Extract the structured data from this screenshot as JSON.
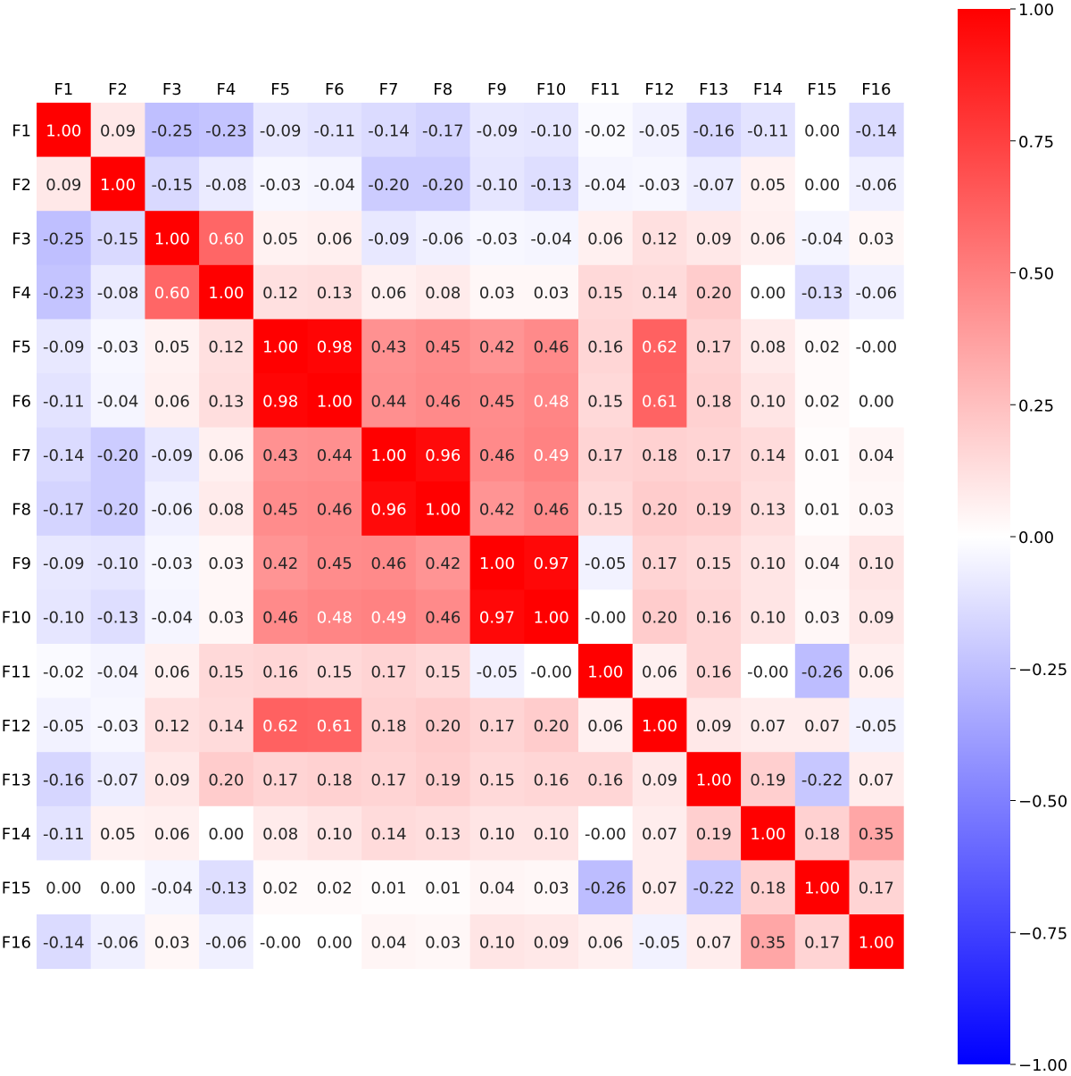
{
  "chart_data": {
    "type": "heatmap",
    "title": "",
    "xlabel": "",
    "ylabel": "",
    "colormap": "bwr",
    "vmin": -1.0,
    "vmax": 1.0,
    "colors": {
      "low": "#0000ff",
      "mid": "#ffffff",
      "high": "#ff0000"
    },
    "x_labels": [
      "F1",
      "F2",
      "F3",
      "F4",
      "F5",
      "F6",
      "F7",
      "F8",
      "F9",
      "F10",
      "F11",
      "F12",
      "F13",
      "F14",
      "F15",
      "F16"
    ],
    "y_labels": [
      "F1",
      "F2",
      "F3",
      "F4",
      "F5",
      "F6",
      "F7",
      "F8",
      "F9",
      "F10",
      "F11",
      "F12",
      "F13",
      "F14",
      "F15",
      "F16"
    ],
    "values": [
      [
        1.0,
        0.09,
        -0.25,
        -0.23,
        -0.09,
        -0.11,
        -0.14,
        -0.17,
        -0.09,
        -0.1,
        -0.02,
        -0.05,
        -0.16,
        -0.11,
        0.0,
        -0.14
      ],
      [
        0.09,
        1.0,
        -0.15,
        -0.08,
        -0.03,
        -0.04,
        -0.2,
        -0.2,
        -0.1,
        -0.13,
        -0.04,
        -0.03,
        -0.07,
        0.05,
        0.0,
        -0.06
      ],
      [
        -0.25,
        -0.15,
        1.0,
        0.6,
        0.05,
        0.06,
        -0.09,
        -0.06,
        -0.03,
        -0.04,
        0.06,
        0.12,
        0.09,
        0.06,
        -0.04,
        0.03
      ],
      [
        -0.23,
        -0.08,
        0.6,
        1.0,
        0.12,
        0.13,
        0.06,
        0.08,
        0.03,
        0.03,
        0.15,
        0.14,
        0.2,
        0.0,
        -0.13,
        -0.06
      ],
      [
        -0.09,
        -0.03,
        0.05,
        0.12,
        1.0,
        0.98,
        0.43,
        0.45,
        0.42,
        0.46,
        0.16,
        0.62,
        0.17,
        0.08,
        0.02,
        -0.0
      ],
      [
        -0.11,
        -0.04,
        0.06,
        0.13,
        0.98,
        1.0,
        0.44,
        0.46,
        0.45,
        0.48,
        0.15,
        0.61,
        0.18,
        0.1,
        0.02,
        0.0
      ],
      [
        -0.14,
        -0.2,
        -0.09,
        0.06,
        0.43,
        0.44,
        1.0,
        0.96,
        0.46,
        0.49,
        0.17,
        0.18,
        0.17,
        0.14,
        0.01,
        0.04
      ],
      [
        -0.17,
        -0.2,
        -0.06,
        0.08,
        0.45,
        0.46,
        0.96,
        1.0,
        0.42,
        0.46,
        0.15,
        0.2,
        0.19,
        0.13,
        0.01,
        0.03
      ],
      [
        -0.09,
        -0.1,
        -0.03,
        0.03,
        0.42,
        0.45,
        0.46,
        0.42,
        1.0,
        0.97,
        -0.05,
        0.17,
        0.15,
        0.1,
        0.04,
        0.1
      ],
      [
        -0.1,
        -0.13,
        -0.04,
        0.03,
        0.46,
        0.48,
        0.49,
        0.46,
        0.97,
        1.0,
        -0.0,
        0.2,
        0.16,
        0.1,
        0.03,
        0.09
      ],
      [
        -0.02,
        -0.04,
        0.06,
        0.15,
        0.16,
        0.15,
        0.17,
        0.15,
        -0.05,
        -0.0,
        1.0,
        0.06,
        0.16,
        -0.0,
        -0.26,
        0.06
      ],
      [
        -0.05,
        -0.03,
        0.12,
        0.14,
        0.62,
        0.61,
        0.18,
        0.2,
        0.17,
        0.2,
        0.06,
        1.0,
        0.09,
        0.07,
        0.07,
        -0.05
      ],
      [
        -0.16,
        -0.07,
        0.09,
        0.2,
        0.17,
        0.18,
        0.17,
        0.19,
        0.15,
        0.16,
        0.16,
        0.09,
        1.0,
        0.19,
        -0.22,
        0.07
      ],
      [
        -0.11,
        0.05,
        0.06,
        0.0,
        0.08,
        0.1,
        0.14,
        0.13,
        0.1,
        0.1,
        -0.0,
        0.07,
        0.19,
        1.0,
        0.18,
        0.35
      ],
      [
        0.0,
        0.0,
        -0.04,
        -0.13,
        0.02,
        0.02,
        0.01,
        0.01,
        0.04,
        0.03,
        -0.26,
        0.07,
        -0.22,
        0.18,
        1.0,
        0.17
      ],
      [
        -0.14,
        -0.06,
        0.03,
        -0.06,
        -0.0,
        0.0,
        0.04,
        0.03,
        0.1,
        0.09,
        0.06,
        -0.05,
        0.07,
        0.35,
        0.17,
        1.0
      ]
    ],
    "colorbar": {
      "ticks": [
        1.0,
        0.75,
        0.5,
        0.25,
        0.0,
        -0.25,
        -0.5,
        -0.75,
        -1.0
      ],
      "tick_labels": [
        "1.00",
        "0.75",
        "0.50",
        "0.25",
        "0.00",
        "−0.25",
        "−0.50",
        "−0.75",
        "−1.00"
      ]
    },
    "grid": false,
    "legend": "right colorbar"
  }
}
